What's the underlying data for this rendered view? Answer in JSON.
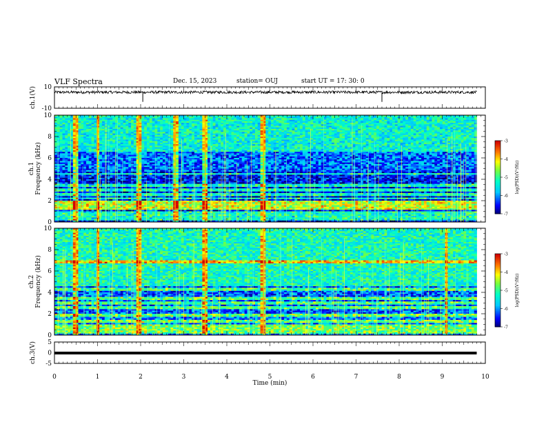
{
  "header": {
    "title": "VLF Spectra",
    "date": "Dec. 15, 2023",
    "station": "station= OUJ",
    "start": "start  UT  =   17: 30: 0"
  },
  "chart_data": [
    {
      "type": "line",
      "panel": "ch1",
      "ylabel": "ch.1(V)",
      "ylim": [
        -10,
        10
      ],
      "y_ticks": [
        "10",
        "-10"
      ],
      "xlim": [
        0,
        10
      ],
      "baseline": 5,
      "spikes": [
        {
          "x": 2.05,
          "y": -4
        },
        {
          "x": 7.6,
          "y": -4
        }
      ]
    },
    {
      "type": "heatmap",
      "panel": "ch1_spectrogram",
      "ylabel": "Frequency  (kHz)",
      "ylabel_channel": "ch.1",
      "ylim": [
        0,
        10
      ],
      "y_ticks": [
        "0",
        "2",
        "4",
        "6",
        "8",
        "10"
      ],
      "xlim": [
        0,
        10
      ],
      "data_end_min": 9.8,
      "colorbar": {
        "label": "log(PSD)(V²/Hz)",
        "range": [
          -7,
          -3
        ],
        "ticks": [
          "-3",
          "-4",
          "-5",
          "-6",
          "-7"
        ]
      },
      "bands_khz": [
        0.3,
        0.6,
        0.9,
        1.3,
        1.6,
        1.9,
        2.2,
        2.6,
        3.0,
        3.4,
        4.5
      ],
      "events_min": [
        0.5,
        1.0,
        1.95,
        2.8,
        3.5,
        4.85
      ]
    },
    {
      "type": "heatmap",
      "panel": "ch2_spectrogram",
      "ylabel": "Frequency  (kHz)",
      "ylabel_channel": "ch.2",
      "ylim": [
        0,
        10
      ],
      "y_ticks": [
        "0",
        "2",
        "4",
        "6",
        "8",
        "10"
      ],
      "xlim": [
        0,
        10
      ],
      "data_end_min": 9.8,
      "colorbar": {
        "label": "log(PSD)(V²/Hz)",
        "range": [
          -7,
          -3
        ],
        "ticks": [
          "-3",
          "-4",
          "-5",
          "-6",
          "-7"
        ]
      },
      "bands_khz": [
        0.3,
        0.6,
        0.9,
        1.3,
        1.9,
        2.6,
        3.0,
        3.4,
        4.3,
        6.9
      ],
      "events_min": [
        0.5,
        1.0,
        1.95,
        3.5,
        4.85,
        9.1
      ]
    },
    {
      "type": "line",
      "panel": "ch3",
      "ylabel": "ch.3(V)",
      "ylim": [
        -5,
        5
      ],
      "y_ticks": [
        "5",
        "0",
        "-5"
      ],
      "xlim": [
        0,
        10
      ],
      "baseline": 0
    }
  ],
  "x_axis": {
    "label": "Time  (min)",
    "ticks": [
      "0",
      "1",
      "2",
      "3",
      "4",
      "5",
      "6",
      "7",
      "8",
      "9",
      "10"
    ]
  }
}
